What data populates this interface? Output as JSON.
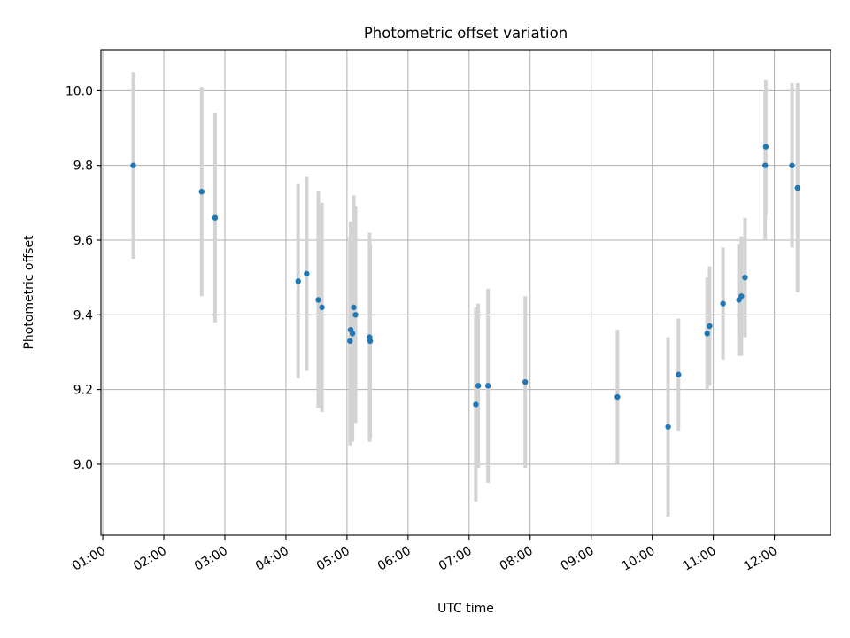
{
  "chart_data": {
    "type": "scatter",
    "title": "Photometric offset variation",
    "xlabel": "UTC time",
    "ylabel": "Photometric offset",
    "x_unit": "hours UTC",
    "xlim": [
      0.97,
      12.92
    ],
    "ylim": [
      8.81,
      10.11
    ],
    "x_ticks": [
      1,
      2,
      3,
      4,
      5,
      6,
      7,
      8,
      9,
      10,
      11,
      12
    ],
    "x_tick_labels": [
      "01:00",
      "02:00",
      "03:00",
      "04:00",
      "05:00",
      "06:00",
      "07:00",
      "08:00",
      "09:00",
      "10:00",
      "11:00",
      "12:00"
    ],
    "y_ticks": [
      9.0,
      9.2,
      9.4,
      9.6,
      9.8,
      10.0
    ],
    "y_tick_labels": [
      "9.0",
      "9.2",
      "9.4",
      "9.6",
      "9.8",
      "10.0"
    ],
    "grid": true,
    "legend": "none",
    "colors": {
      "point": "#1f77b4",
      "errorbar": "#d3d3d3",
      "grid": "#b0b0b0"
    },
    "points": [
      {
        "x": 1.5,
        "y": 9.8,
        "err": 0.25
      },
      {
        "x": 2.62,
        "y": 9.73,
        "err": 0.28
      },
      {
        "x": 2.84,
        "y": 9.66,
        "err": 0.28
      },
      {
        "x": 4.2,
        "y": 9.49,
        "err": 0.26
      },
      {
        "x": 4.34,
        "y": 9.51,
        "err": 0.26
      },
      {
        "x": 4.53,
        "y": 9.44,
        "err": 0.29
      },
      {
        "x": 4.59,
        "y": 9.42,
        "err": 0.28
      },
      {
        "x": 5.05,
        "y": 9.33,
        "err": 0.28
      },
      {
        "x": 5.06,
        "y": 9.36,
        "err": 0.29
      },
      {
        "x": 5.09,
        "y": 9.35,
        "err": 0.29
      },
      {
        "x": 5.11,
        "y": 9.42,
        "err": 0.3
      },
      {
        "x": 5.14,
        "y": 9.4,
        "err": 0.29
      },
      {
        "x": 5.37,
        "y": 9.34,
        "err": 0.28
      },
      {
        "x": 5.38,
        "y": 9.33,
        "err": 0.26
      },
      {
        "x": 7.11,
        "y": 9.16,
        "err": 0.26
      },
      {
        "x": 7.15,
        "y": 9.21,
        "err": 0.22
      },
      {
        "x": 7.31,
        "y": 9.21,
        "err": 0.26
      },
      {
        "x": 7.92,
        "y": 9.22,
        "err": 0.23
      },
      {
        "x": 9.43,
        "y": 9.18,
        "err": 0.18
      },
      {
        "x": 10.26,
        "y": 9.1,
        "err": 0.24
      },
      {
        "x": 10.43,
        "y": 9.24,
        "err": 0.15
      },
      {
        "x": 10.9,
        "y": 9.35,
        "err": 0.15
      },
      {
        "x": 10.94,
        "y": 9.37,
        "err": 0.16
      },
      {
        "x": 11.16,
        "y": 9.43,
        "err": 0.15
      },
      {
        "x": 11.42,
        "y": 9.44,
        "err": 0.15
      },
      {
        "x": 11.46,
        "y": 9.45,
        "err": 0.16
      },
      {
        "x": 11.52,
        "y": 9.5,
        "err": 0.16
      },
      {
        "x": 11.85,
        "y": 9.8,
        "err": 0.2
      },
      {
        "x": 11.86,
        "y": 9.85,
        "err": 0.18
      },
      {
        "x": 12.29,
        "y": 9.8,
        "err": 0.22
      },
      {
        "x": 12.38,
        "y": 9.74,
        "err": 0.28
      }
    ]
  }
}
